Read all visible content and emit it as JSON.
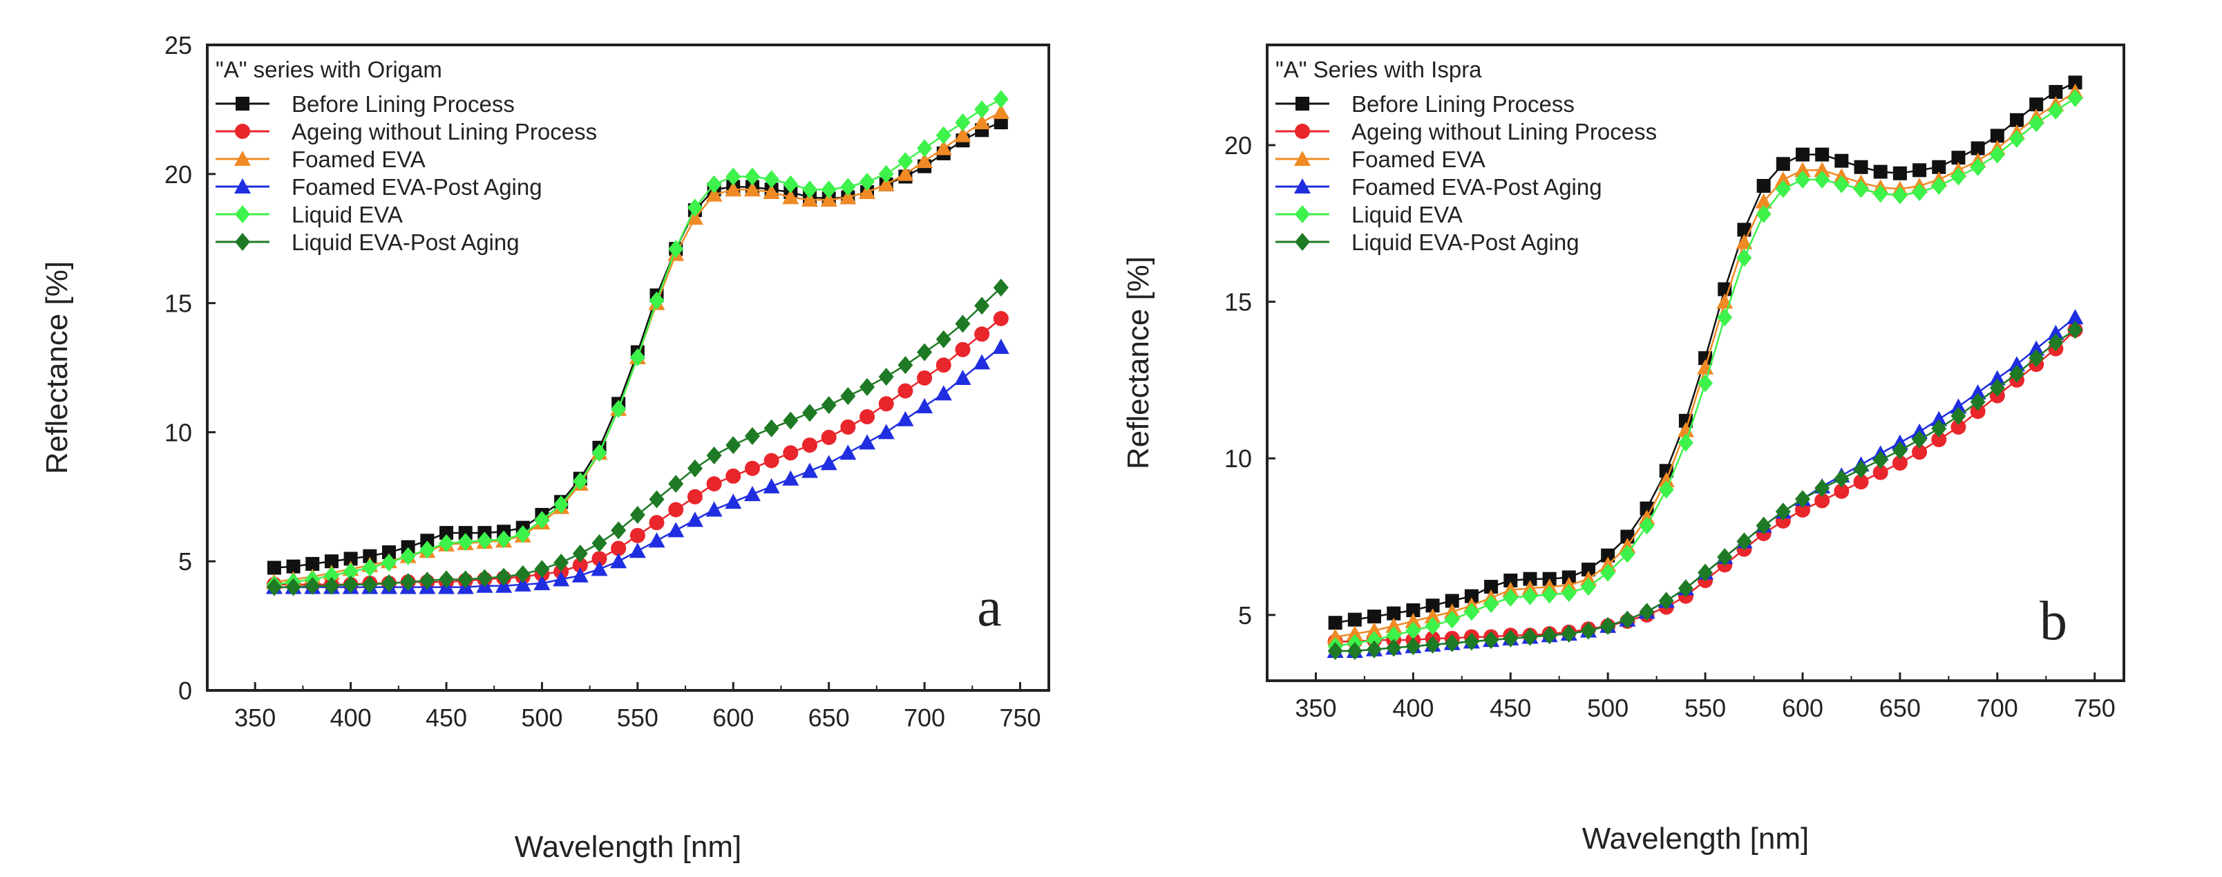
{
  "chart_data": [
    {
      "type": "line",
      "panel_label": "a",
      "legend_title": "\"A\" series with Origam",
      "xlabel": "Wavelength [nm]",
      "ylabel": "Reflectance [%]",
      "xlim": [
        325,
        765
      ],
      "ylim": [
        0,
        25
      ],
      "xticks": [
        350,
        400,
        450,
        500,
        550,
        600,
        650,
        700,
        750
      ],
      "yticks": [
        0,
        5,
        10,
        15,
        20,
        25
      ],
      "x": [
        360,
        370,
        380,
        390,
        400,
        410,
        420,
        430,
        440,
        450,
        460,
        470,
        480,
        490,
        500,
        510,
        520,
        530,
        540,
        550,
        560,
        570,
        580,
        590,
        600,
        610,
        620,
        630,
        640,
        650,
        660,
        670,
        680,
        690,
        700,
        710,
        720,
        730,
        740
      ],
      "series": [
        {
          "name": "Before Lining Process",
          "color": "#111111",
          "marker": "square",
          "values": [
            4.75,
            4.8,
            4.9,
            5.0,
            5.1,
            5.2,
            5.35,
            5.55,
            5.8,
            6.1,
            6.1,
            6.1,
            6.15,
            6.3,
            6.8,
            7.3,
            8.2,
            9.4,
            11.1,
            13.1,
            15.3,
            17.1,
            18.6,
            19.4,
            19.5,
            19.5,
            19.4,
            19.3,
            19.1,
            19.05,
            19.1,
            19.3,
            19.6,
            19.9,
            20.3,
            20.8,
            21.3,
            21.7,
            22.0
          ]
        },
        {
          "name": "Ageing without Lining Process",
          "color": "#e8262b",
          "marker": "circle",
          "values": [
            4.1,
            4.1,
            4.1,
            4.1,
            4.1,
            4.15,
            4.15,
            4.2,
            4.2,
            4.2,
            4.25,
            4.3,
            4.35,
            4.4,
            4.5,
            4.6,
            4.85,
            5.1,
            5.5,
            6.0,
            6.5,
            7.0,
            7.5,
            8.0,
            8.3,
            8.6,
            8.9,
            9.2,
            9.5,
            9.8,
            10.2,
            10.6,
            11.1,
            11.6,
            12.1,
            12.6,
            13.2,
            13.8,
            14.4
          ]
        },
        {
          "name": "Foamed EVA",
          "color": "#f08a24",
          "marker": "triangle",
          "values": [
            4.2,
            4.3,
            4.4,
            4.55,
            4.7,
            4.85,
            5.0,
            5.2,
            5.4,
            5.65,
            5.7,
            5.75,
            5.8,
            6.0,
            6.5,
            7.1,
            8.0,
            9.2,
            10.9,
            12.9,
            15.0,
            16.9,
            18.3,
            19.2,
            19.4,
            19.4,
            19.3,
            19.1,
            19.0,
            19.0,
            19.1,
            19.3,
            19.6,
            20.0,
            20.5,
            21.0,
            21.5,
            22.0,
            22.4
          ]
        },
        {
          "name": "Foamed EVA-Post Aging",
          "color": "#1f2ee0",
          "marker": "triangle",
          "values": [
            4.0,
            4.0,
            4.0,
            4.0,
            4.0,
            4.0,
            4.0,
            4.0,
            4.0,
            4.0,
            4.0,
            4.05,
            4.05,
            4.1,
            4.15,
            4.3,
            4.45,
            4.7,
            5.0,
            5.4,
            5.8,
            6.2,
            6.6,
            7.0,
            7.3,
            7.6,
            7.9,
            8.2,
            8.5,
            8.8,
            9.2,
            9.6,
            10.0,
            10.5,
            11.0,
            11.5,
            12.1,
            12.7,
            13.3
          ]
        },
        {
          "name": "Liquid EVA",
          "color": "#3df24a",
          "marker": "diamond",
          "values": [
            4.1,
            4.2,
            4.3,
            4.45,
            4.6,
            4.75,
            4.95,
            5.2,
            5.45,
            5.7,
            5.75,
            5.8,
            5.85,
            6.05,
            6.6,
            7.2,
            8.1,
            9.2,
            10.9,
            12.9,
            15.1,
            17.1,
            18.7,
            19.6,
            19.9,
            19.9,
            19.8,
            19.6,
            19.4,
            19.4,
            19.5,
            19.7,
            20.0,
            20.5,
            21.0,
            21.5,
            22.0,
            22.5,
            22.9
          ]
        },
        {
          "name": "Liquid EVA-Post Aging",
          "color": "#1e7a24",
          "marker": "diamond",
          "values": [
            4.0,
            4.0,
            4.05,
            4.05,
            4.1,
            4.1,
            4.15,
            4.2,
            4.25,
            4.3,
            4.3,
            4.35,
            4.4,
            4.5,
            4.7,
            4.95,
            5.3,
            5.7,
            6.2,
            6.8,
            7.4,
            8.0,
            8.6,
            9.1,
            9.5,
            9.85,
            10.15,
            10.45,
            10.75,
            11.05,
            11.4,
            11.75,
            12.15,
            12.6,
            13.1,
            13.6,
            14.2,
            14.9,
            15.6
          ]
        }
      ]
    },
    {
      "type": "line",
      "panel_label": "b",
      "legend_title": "\"A\" Series with Ispra",
      "xlabel": "Wavelength [nm]",
      "ylabel": "Reflectance [%]",
      "xlim": [
        325,
        765
      ],
      "ylim": [
        2.9,
        23.2
      ],
      "xticks": [
        350,
        400,
        450,
        500,
        550,
        600,
        650,
        700,
        750
      ],
      "yticks": [
        5,
        10,
        15,
        20
      ],
      "x": [
        360,
        370,
        380,
        390,
        400,
        410,
        420,
        430,
        440,
        450,
        460,
        470,
        480,
        490,
        500,
        510,
        520,
        530,
        540,
        550,
        560,
        570,
        580,
        590,
        600,
        610,
        620,
        630,
        640,
        650,
        660,
        670,
        680,
        690,
        700,
        710,
        720,
        730,
        740
      ],
      "series": [
        {
          "name": "Before Lining Process",
          "color": "#111111",
          "marker": "square",
          "values": [
            4.75,
            4.85,
            4.95,
            5.05,
            5.15,
            5.3,
            5.45,
            5.6,
            5.9,
            6.1,
            6.15,
            6.15,
            6.2,
            6.45,
            6.9,
            7.5,
            8.4,
            9.6,
            11.2,
            13.2,
            15.4,
            17.3,
            18.7,
            19.4,
            19.7,
            19.7,
            19.5,
            19.3,
            19.15,
            19.1,
            19.2,
            19.3,
            19.6,
            19.9,
            20.3,
            20.8,
            21.3,
            21.7,
            22.0
          ]
        },
        {
          "name": "Ageing without Lining Process",
          "color": "#e8262b",
          "marker": "circle",
          "values": [
            4.15,
            4.15,
            4.2,
            4.2,
            4.2,
            4.25,
            4.25,
            4.3,
            4.3,
            4.35,
            4.35,
            4.4,
            4.45,
            4.55,
            4.65,
            4.8,
            5.0,
            5.25,
            5.6,
            6.1,
            6.6,
            7.1,
            7.6,
            8.0,
            8.35,
            8.65,
            8.95,
            9.25,
            9.55,
            9.85,
            10.2,
            10.6,
            11.0,
            11.5,
            12.0,
            12.5,
            13.0,
            13.5,
            14.1
          ]
        },
        {
          "name": "Foamed EVA",
          "color": "#f08a24",
          "marker": "triangle",
          "values": [
            4.3,
            4.4,
            4.5,
            4.65,
            4.8,
            4.95,
            5.1,
            5.3,
            5.55,
            5.8,
            5.85,
            5.9,
            5.95,
            6.15,
            6.6,
            7.2,
            8.1,
            9.3,
            10.9,
            12.9,
            15.0,
            16.9,
            18.2,
            18.9,
            19.2,
            19.2,
            19.0,
            18.8,
            18.65,
            18.6,
            18.7,
            18.9,
            19.2,
            19.5,
            19.9,
            20.4,
            20.9,
            21.3,
            21.7
          ]
        },
        {
          "name": "Foamed EVA-Post Aging",
          "color": "#1f2ee0",
          "marker": "triangle",
          "values": [
            3.85,
            3.85,
            3.9,
            3.95,
            4.0,
            4.05,
            4.1,
            4.15,
            4.2,
            4.25,
            4.3,
            4.35,
            4.4,
            4.5,
            4.65,
            4.85,
            5.1,
            5.45,
            5.85,
            6.35,
            6.85,
            7.35,
            7.85,
            8.3,
            8.7,
            9.1,
            9.45,
            9.8,
            10.15,
            10.5,
            10.85,
            11.25,
            11.65,
            12.1,
            12.55,
            13.0,
            13.5,
            14.0,
            14.5
          ]
        },
        {
          "name": "Liquid EVA",
          "color": "#3df24a",
          "marker": "diamond",
          "values": [
            4.0,
            4.1,
            4.2,
            4.35,
            4.5,
            4.65,
            4.85,
            5.1,
            5.35,
            5.55,
            5.6,
            5.65,
            5.7,
            5.9,
            6.35,
            6.95,
            7.85,
            9.0,
            10.5,
            12.4,
            14.5,
            16.4,
            17.8,
            18.6,
            18.9,
            18.9,
            18.75,
            18.6,
            18.45,
            18.4,
            18.5,
            18.7,
            19.0,
            19.3,
            19.7,
            20.2,
            20.7,
            21.1,
            21.5
          ]
        },
        {
          "name": "Liquid EVA-Post Aging",
          "color": "#1e7a24",
          "marker": "diamond",
          "values": [
            3.85,
            3.85,
            3.9,
            3.95,
            4.0,
            4.05,
            4.1,
            4.15,
            4.2,
            4.25,
            4.3,
            4.35,
            4.4,
            4.5,
            4.65,
            4.85,
            5.1,
            5.45,
            5.85,
            6.35,
            6.85,
            7.35,
            7.85,
            8.3,
            8.7,
            9.05,
            9.35,
            9.65,
            9.95,
            10.25,
            10.6,
            10.95,
            11.35,
            11.8,
            12.25,
            12.7,
            13.2,
            13.7,
            14.1
          ]
        }
      ]
    }
  ]
}
